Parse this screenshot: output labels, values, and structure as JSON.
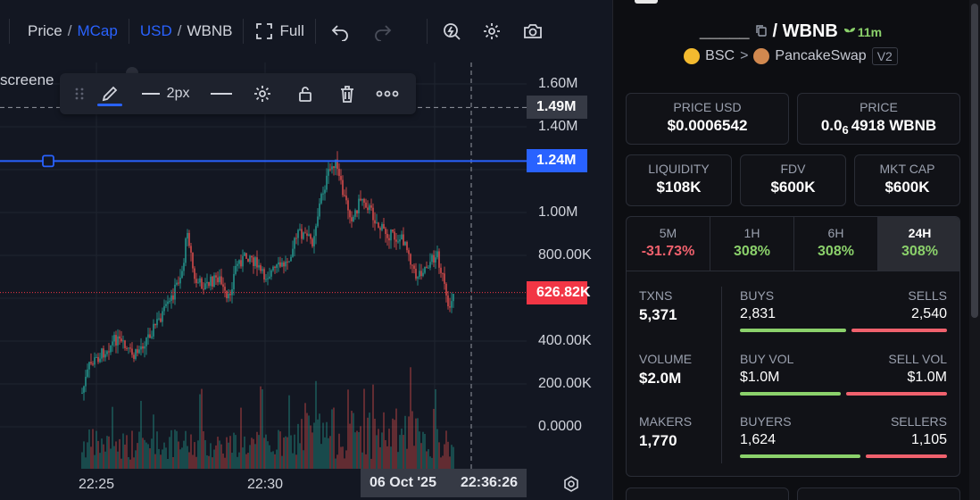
{
  "toolbar": {
    "price_label": "Price",
    "slash": "/",
    "mcap_label": "MCap",
    "usd_label": "USD",
    "wbnb_label": "WBNB",
    "full_label": "Full"
  },
  "chart": {
    "partial_label": "screene",
    "draw_toolbar": {
      "width_label": "2px"
    },
    "price_axis": [
      {
        "label": "1.60M",
        "value": 1600000
      },
      {
        "label": "1.40M",
        "value": 1400000
      },
      {
        "label": "1.00M",
        "value": 1000000
      },
      {
        "label": "800.00K",
        "value": 800000
      },
      {
        "label": "400.00K",
        "value": 400000
      },
      {
        "label": "200.00K",
        "value": 200000
      },
      {
        "label": "0.0000",
        "value": 0
      }
    ],
    "crosshair_price": {
      "label": "1.49M",
      "value": 1490000
    },
    "hline_price": {
      "label": "1.24M",
      "value": 1240000,
      "color": "#2962ff"
    },
    "last_price": {
      "label": "626.82K",
      "value": 626820,
      "color": "#f23645"
    },
    "time_axis": [
      "22:25",
      "22:30"
    ],
    "crosshair_time": {
      "date": "06 Oct '25",
      "time": "22:36:26"
    }
  },
  "pair": {
    "token": "_____",
    "quote": "/ WBNB",
    "age": "11m",
    "chain": "BSC",
    "sep": ">",
    "dex": "PancakeSwap",
    "version": "V2"
  },
  "stats": {
    "price_usd": {
      "label": "PRICE USD",
      "value": "$0.0006542"
    },
    "price": {
      "label": "PRICE",
      "prefix": "0.0",
      "sub": "6",
      "suffix": "4918 WBNB"
    },
    "liquidity": {
      "label": "LIQUIDITY",
      "value": "$108K"
    },
    "fdv": {
      "label": "FDV",
      "value": "$600K"
    },
    "mkt_cap": {
      "label": "MKT CAP",
      "value": "$600K"
    }
  },
  "timeframes": [
    {
      "label": "5M",
      "value": "-31.73%",
      "trend": "neg"
    },
    {
      "label": "1H",
      "value": "308%",
      "trend": "pos"
    },
    {
      "label": "6H",
      "value": "308%",
      "trend": "pos"
    },
    {
      "label": "24H",
      "value": "308%",
      "trend": "pos",
      "active": true
    }
  ],
  "txns": {
    "txns": {
      "label": "TXNS",
      "value": "5,371"
    },
    "volume": {
      "label": "VOLUME",
      "value": "$2.0M"
    },
    "makers": {
      "label": "MAKERS",
      "value": "1,770"
    },
    "buys": {
      "label": "BUYS",
      "value": "2,831"
    },
    "sells": {
      "label": "SELLS",
      "value": "2,540"
    },
    "buy_vol": {
      "label": "BUY VOL",
      "value": "$1.0M"
    },
    "sell_vol": {
      "label": "SELL VOL",
      "value": "$1.0M"
    },
    "buyers": {
      "label": "BUYERS",
      "value": "1,624"
    },
    "sellers": {
      "label": "SELLERS",
      "value": "1,105"
    },
    "buys_ratio": 0.527,
    "vol_ratio": 0.5,
    "buyers_ratio": 0.595
  }
}
